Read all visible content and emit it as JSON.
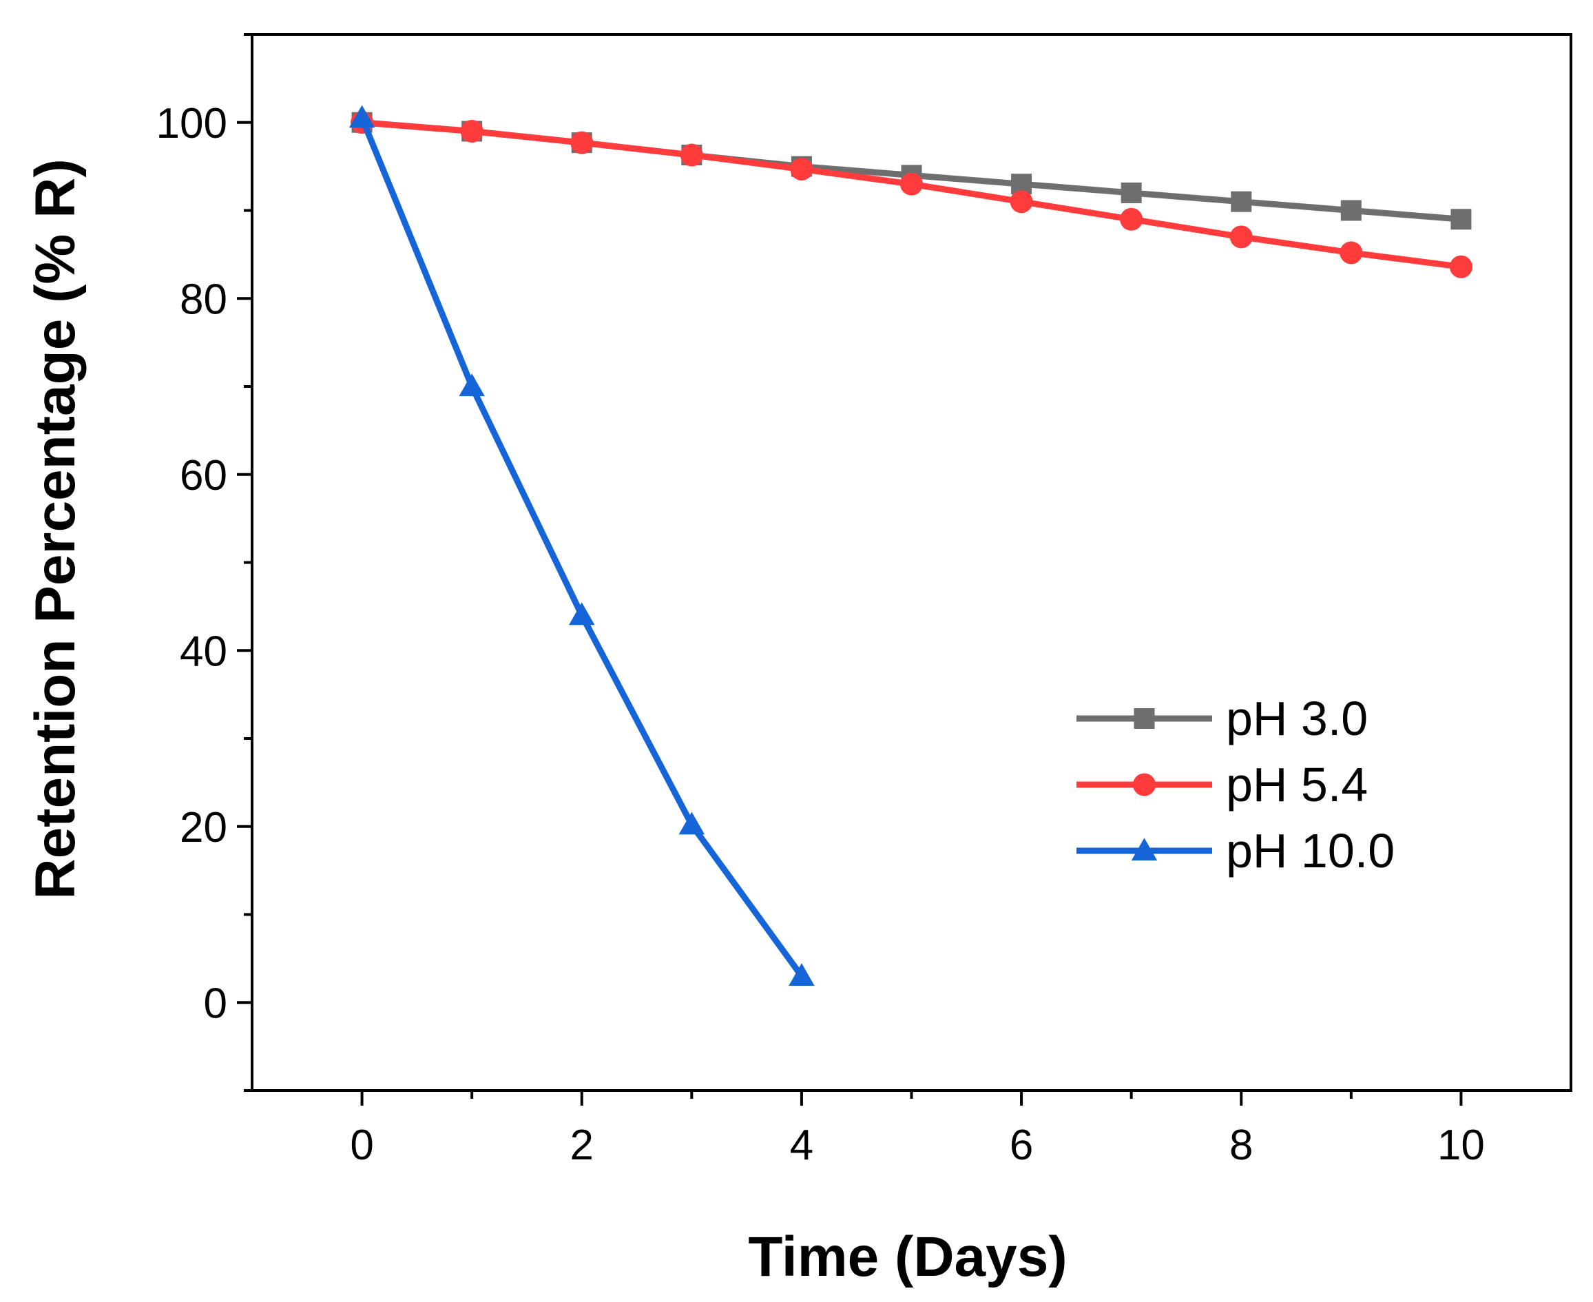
{
  "chart_data": {
    "type": "line",
    "xlabel": "Time (Days)",
    "ylabel": "Retention Percentage (% R)",
    "xlim": [
      -1,
      11
    ],
    "ylim": [
      -10,
      110
    ],
    "xticks": [
      0,
      2,
      4,
      6,
      8,
      10
    ],
    "yticks": [
      0,
      20,
      40,
      60,
      80,
      100
    ],
    "x_minor_ticks": [
      1,
      3,
      5,
      7,
      9
    ],
    "y_minor_ticks": [
      -10,
      10,
      30,
      50,
      70,
      90,
      110
    ],
    "grid": false,
    "legend_position": "center-right",
    "series": [
      {
        "name": "pH 3.0",
        "color": "#6e6e6e",
        "marker": "square",
        "x": [
          0,
          1,
          2,
          3,
          4,
          5,
          6,
          7,
          8,
          9,
          10
        ],
        "y": [
          100,
          99,
          97.7,
          96.3,
          95,
          94,
          93,
          92,
          91,
          90,
          89
        ]
      },
      {
        "name": "pH 5.4",
        "color": "#ff3b3b",
        "marker": "circle",
        "x": [
          0,
          1,
          2,
          3,
          4,
          5,
          6,
          7,
          8,
          9,
          10
        ],
        "y": [
          100,
          99,
          97.7,
          96.3,
          94.7,
          93,
          91,
          89,
          87,
          85.2,
          83.6
        ]
      },
      {
        "name": "pH 10.0",
        "color": "#1565d8",
        "marker": "triangle",
        "x": [
          0,
          1,
          2,
          3,
          4
        ],
        "y": [
          100.5,
          70,
          44,
          20.2,
          3
        ]
      }
    ]
  }
}
